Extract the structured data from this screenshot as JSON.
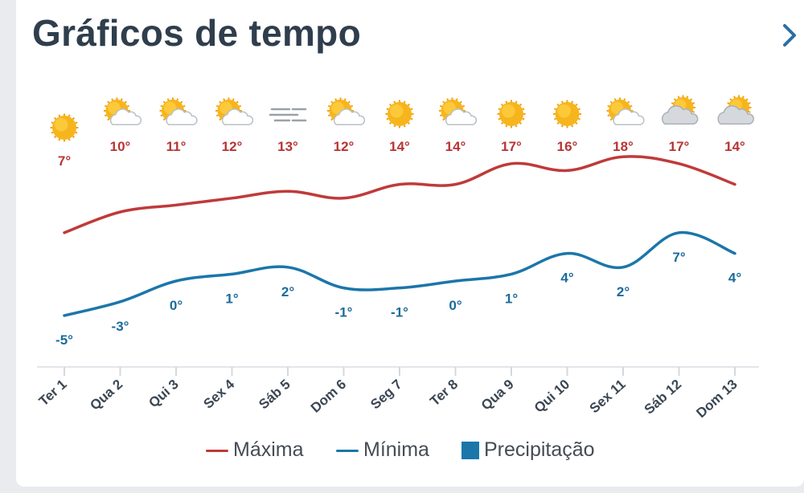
{
  "header": {
    "title": "Gráficos de tempo"
  },
  "chart_data": {
    "type": "line",
    "categories": [
      "Ter 1",
      "Qua 2",
      "Qui 3",
      "Sex 4",
      "Sáb 5",
      "Dom 6",
      "Seg 7",
      "Ter 8",
      "Qua 9",
      "Qui 10",
      "Sex 11",
      "Sáb 12",
      "Dom 13"
    ],
    "icons": [
      "sun-icon",
      "partly-cloudy-icon",
      "partly-cloudy-icon",
      "partly-cloudy-icon",
      "fog-icon",
      "partly-cloudy-icon",
      "sun-icon",
      "partly-cloudy-icon",
      "sun-icon",
      "sun-icon",
      "partly-cloudy-icon",
      "mostly-cloudy-icon",
      "mostly-cloudy-icon"
    ],
    "series": [
      {
        "name": "Máxima",
        "color": "#c03a3a",
        "values": [
          7,
          10,
          11,
          12,
          13,
          12,
          14,
          14,
          17,
          16,
          18,
          17,
          14
        ],
        "labels": [
          "7°",
          "10°",
          "11°",
          "12°",
          "13°",
          "12°",
          "14°",
          "14°",
          "17°",
          "16°",
          "18°",
          "17°",
          "14°"
        ]
      },
      {
        "name": "Mínima",
        "color": "#1b76aa",
        "values": [
          -5,
          -3,
          0,
          1,
          2,
          -1,
          -1,
          0,
          1,
          4,
          2,
          7,
          4
        ],
        "labels": [
          "-5°",
          "-3°",
          "0°",
          "1°",
          "2°",
          "-1°",
          "-1°",
          "0°",
          "1°",
          "4°",
          "2°",
          "7°",
          "4°"
        ]
      }
    ],
    "legend": [
      {
        "name": "Máxima",
        "color": "#c03a3a",
        "marker": "line"
      },
      {
        "name": "Mínima",
        "color": "#1b76aa",
        "marker": "line"
      },
      {
        "name": "Precipitação",
        "color": "#1b76aa",
        "marker": "box"
      }
    ],
    "legend_position": "bottom",
    "grid": false,
    "ylim": [
      -12,
      22
    ]
  }
}
